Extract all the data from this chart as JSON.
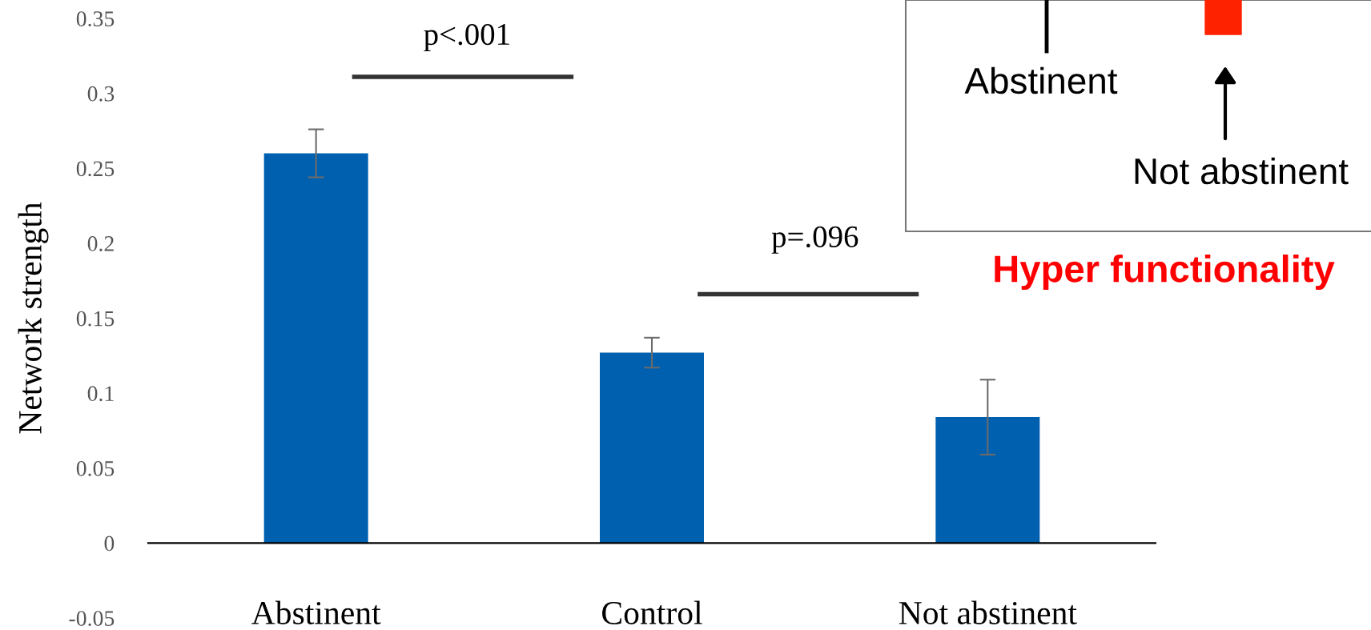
{
  "chart_data": {
    "type": "bar",
    "ylabel": "Network strength",
    "categories": [
      "Abstinent",
      "Control",
      "Not abstinent"
    ],
    "values": [
      0.26,
      0.127,
      0.084
    ],
    "errors": [
      0.016,
      0.01,
      0.025
    ],
    "color": "#0060b0",
    "ylim": [
      -0.05,
      0.35
    ],
    "yticks": [
      -0.05,
      0,
      0.05,
      0.1,
      0.15,
      0.2,
      0.25,
      0.3,
      0.35
    ],
    "grid": false,
    "annotations": [
      "p<.001",
      "p=.096",
      "Abstinent",
      "Not abstinent",
      "Hyper functionality"
    ]
  }
}
